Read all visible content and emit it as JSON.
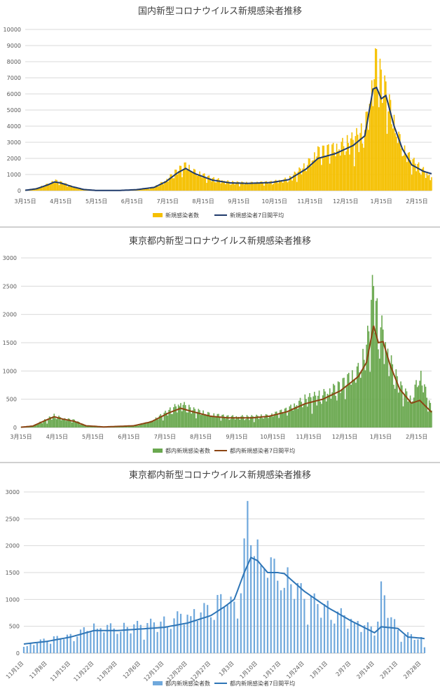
{
  "chart_data": [
    {
      "type": "bar",
      "title": "国内新型コロナウイルス新規感染者推移",
      "bar_color": "#f5c000",
      "line_color": "#1f3a6b",
      "ylim": [
        0,
        10000
      ],
      "yticks": [
        "0",
        "1000",
        "2000",
        "3000",
        "4000",
        "5000",
        "6000",
        "7000",
        "8000",
        "9000",
        "10000"
      ],
      "xticks": [
        "3月15日",
        "4月15日",
        "5月15日",
        "6月15日",
        "7月15日",
        "8月15日",
        "9月15日",
        "10月15日",
        "11月15日",
        "12月15日",
        "1月15日",
        "2月15日"
      ],
      "x_start": "3月15日",
      "x_end": "2月25日",
      "series": [
        {
          "name": "新規感染者数",
          "kind": "bar",
          "anchors": [
            [
              0,
              20
            ],
            [
              10,
              150
            ],
            [
              20,
              400
            ],
            [
              25,
              600
            ],
            [
              30,
              500
            ],
            [
              40,
              250
            ],
            [
              50,
              80
            ],
            [
              60,
              20
            ],
            [
              80,
              10
            ],
            [
              95,
              60
            ],
            [
              110,
              200
            ],
            [
              120,
              600
            ],
            [
              130,
              1200
            ],
            [
              137,
              1500
            ],
            [
              145,
              1100
            ],
            [
              160,
              700
            ],
            [
              175,
              500
            ],
            [
              190,
              450
            ],
            [
              210,
              500
            ],
            [
              225,
              700
            ],
            [
              240,
              1500
            ],
            [
              250,
              2300
            ],
            [
              265,
              2500
            ],
            [
              280,
              3000
            ],
            [
              290,
              3600
            ],
            [
              297,
              6500
            ],
            [
              300,
              7700
            ],
            [
              304,
              6500
            ],
            [
              308,
              5800
            ],
            [
              315,
              4000
            ],
            [
              322,
              2500
            ],
            [
              330,
              1800
            ],
            [
              340,
              1200
            ],
            [
              347,
              800
            ]
          ]
        },
        {
          "name": "新規感染者7日間平均",
          "kind": "line",
          "anchors": [
            [
              0,
              20
            ],
            [
              10,
              120
            ],
            [
              20,
              380
            ],
            [
              25,
              540
            ],
            [
              30,
              480
            ],
            [
              40,
              250
            ],
            [
              50,
              70
            ],
            [
              60,
              15
            ],
            [
              80,
              10
            ],
            [
              95,
              60
            ],
            [
              110,
              200
            ],
            [
              120,
              550
            ],
            [
              130,
              1100
            ],
            [
              137,
              1380
            ],
            [
              145,
              1050
            ],
            [
              160,
              650
            ],
            [
              175,
              480
            ],
            [
              190,
              450
            ],
            [
              210,
              500
            ],
            [
              225,
              680
            ],
            [
              240,
              1350
            ],
            [
              250,
              2000
            ],
            [
              265,
              2300
            ],
            [
              280,
              2800
            ],
            [
              290,
              3400
            ],
            [
              297,
              6300
            ],
            [
              300,
              6400
            ],
            [
              304,
              5700
            ],
            [
              308,
              5900
            ],
            [
              315,
              4000
            ],
            [
              322,
              2600
            ],
            [
              330,
              1600
            ],
            [
              340,
              1200
            ],
            [
              347,
              1050
            ]
          ]
        }
      ],
      "legend_position": "bottom"
    },
    {
      "type": "bar",
      "title": "東京都内新型コロナウイルス新規感染者推移",
      "bar_color": "#6aa84f",
      "line_color": "#8b4513",
      "ylim": [
        0,
        3000
      ],
      "yticks": [
        "0",
        "500",
        "1000",
        "1500",
        "2000",
        "2500",
        "3000"
      ],
      "xticks": [
        "3月15日",
        "4月15日",
        "5月15日",
        "6月15日",
        "7月15日",
        "8月15日",
        "9月15日",
        "10月15日",
        "11月15日",
        "12月15日",
        "1月15日",
        "2月15日"
      ],
      "x_start": "3月15日",
      "x_end": "2月25日",
      "series": [
        {
          "name": "都内新規感染者数",
          "kind": "bar",
          "anchors": [
            [
              0,
              5
            ],
            [
              10,
              30
            ],
            [
              20,
              120
            ],
            [
              28,
              200
            ],
            [
              35,
              150
            ],
            [
              45,
              120
            ],
            [
              55,
              30
            ],
            [
              70,
              10
            ],
            [
              95,
              30
            ],
            [
              110,
              100
            ],
            [
              125,
              280
            ],
            [
              135,
              400
            ],
            [
              145,
              300
            ],
            [
              160,
              220
            ],
            [
              175,
              180
            ],
            [
              195,
              180
            ],
            [
              210,
              200
            ],
            [
              225,
              300
            ],
            [
              240,
              480
            ],
            [
              255,
              550
            ],
            [
              270,
              700
            ],
            [
              285,
              950
            ],
            [
              292,
              1300
            ],
            [
              298,
              2400
            ],
            [
              302,
              1700
            ],
            [
              306,
              1600
            ],
            [
              312,
              1100
            ],
            [
              320,
              700
            ],
            [
              330,
              450
            ],
            [
              337,
              900
            ],
            [
              347,
              300
            ]
          ]
        },
        {
          "name": "都内新規感染者7日間平均",
          "kind": "line",
          "anchors": [
            [
              0,
              5
            ],
            [
              10,
              25
            ],
            [
              20,
              120
            ],
            [
              28,
              190
            ],
            [
              35,
              150
            ],
            [
              45,
              110
            ],
            [
              55,
              30
            ],
            [
              70,
              10
            ],
            [
              95,
              30
            ],
            [
              110,
              100
            ],
            [
              125,
              260
            ],
            [
              135,
              340
            ],
            [
              145,
              280
            ],
            [
              160,
              200
            ],
            [
              175,
              170
            ],
            [
              195,
              170
            ],
            [
              210,
              200
            ],
            [
              225,
              280
            ],
            [
              240,
              420
            ],
            [
              255,
              500
            ],
            [
              270,
              650
            ],
            [
              285,
              900
            ],
            [
              292,
              1150
            ],
            [
              298,
              1800
            ],
            [
              302,
              1500
            ],
            [
              306,
              1520
            ],
            [
              312,
              1100
            ],
            [
              320,
              680
            ],
            [
              330,
              430
            ],
            [
              337,
              480
            ],
            [
              347,
              270
            ]
          ]
        }
      ],
      "legend_position": "bottom"
    },
    {
      "type": "bar",
      "title": "東京都内新型コロナウイルス新規感染者推移",
      "bar_color": "#6fa8dc",
      "line_color": "#2e75b6",
      "ylim": [
        0,
        3000
      ],
      "yticks": [
        "0",
        "500",
        "1000",
        "1500",
        "2000",
        "2500",
        "3000"
      ],
      "xticks": [
        "11月1日",
        "11月8日",
        "11月15日",
        "11月22日",
        "11月29日",
        "12月6日",
        "12月13日",
        "12月20日",
        "12月27日",
        "1月3日",
        "1月10日",
        "1月17日",
        "1月24日",
        "1月31日",
        "2月7日",
        "2月14日",
        "2月21日",
        "2月28日"
      ],
      "x_start": "11月1日",
      "x_end": "3月1日",
      "series": [
        {
          "name": "都内新規感染者数",
          "kind": "bar",
          "anchors": [
            [
              0,
              120
            ],
            [
              7,
              250
            ],
            [
              14,
              300
            ],
            [
              21,
              480
            ],
            [
              28,
              450
            ],
            [
              35,
              500
            ],
            [
              42,
              560
            ],
            [
              49,
              700
            ],
            [
              56,
              800
            ],
            [
              60,
              1000
            ],
            [
              63,
              820
            ],
            [
              65,
              1200
            ],
            [
              67,
              2400
            ],
            [
              70,
              1800
            ],
            [
              73,
              1600
            ],
            [
              76,
              1400
            ],
            [
              80,
              1300
            ],
            [
              84,
              1000
            ],
            [
              91,
              800
            ],
            [
              98,
              600
            ],
            [
              105,
              420
            ],
            [
              107,
              1100
            ],
            [
              112,
              380
            ],
            [
              119,
              250
            ],
            [
              120,
              120
            ]
          ]
        },
        {
          "name": "都内新規感染者7日間平均",
          "kind": "line",
          "anchors": [
            [
              0,
              170
            ],
            [
              7,
              220
            ],
            [
              14,
              300
            ],
            [
              21,
              420
            ],
            [
              28,
              420
            ],
            [
              35,
              450
            ],
            [
              42,
              480
            ],
            [
              49,
              560
            ],
            [
              56,
              700
            ],
            [
              60,
              860
            ],
            [
              63,
              1000
            ],
            [
              66,
              1500
            ],
            [
              68,
              1780
            ],
            [
              70,
              1720
            ],
            [
              73,
              1500
            ],
            [
              76,
              1500
            ],
            [
              78,
              1480
            ],
            [
              84,
              1150
            ],
            [
              91,
              850
            ],
            [
              98,
              600
            ],
            [
              105,
              380
            ],
            [
              107,
              490
            ],
            [
              112,
              460
            ],
            [
              115,
              300
            ],
            [
              119,
              280
            ],
            [
              120,
              270
            ]
          ]
        }
      ],
      "legend_position": "bottom"
    }
  ]
}
